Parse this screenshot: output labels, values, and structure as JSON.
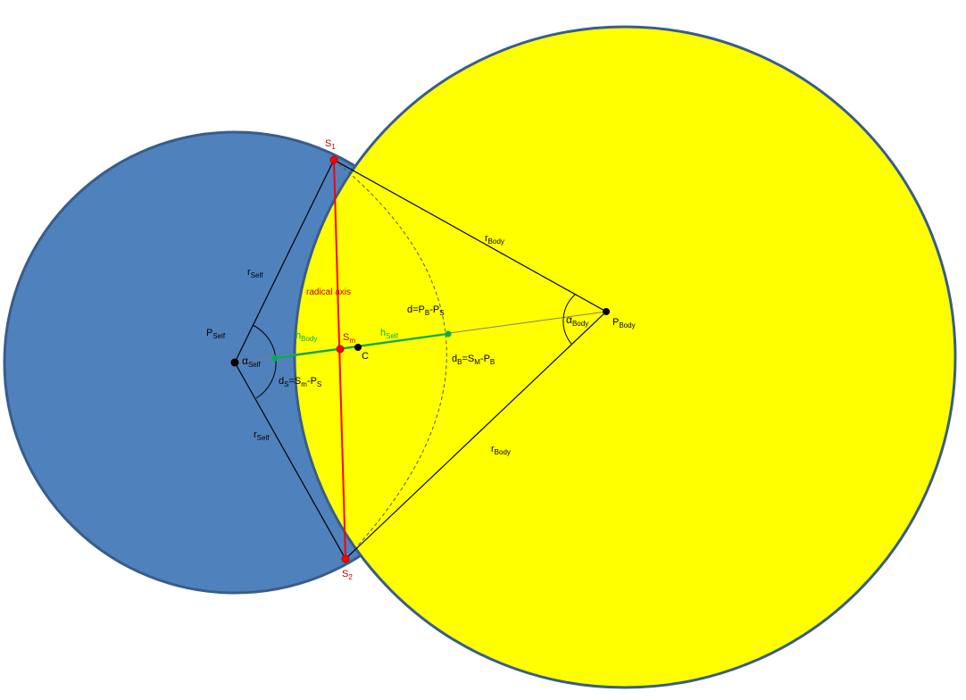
{
  "colors": {
    "self_circle_fill": "#4f81bd",
    "body_circle_fill": "#ffff00",
    "circle_outline": "#385d8a",
    "radical_axis": "#ff0000",
    "green_line": "#00b050",
    "black": "#000000"
  },
  "labels": {
    "s1": {
      "main": "S",
      "sub": "1"
    },
    "s2": {
      "main": "S",
      "sub": "2"
    },
    "sm": {
      "main": "S",
      "sub": "m"
    },
    "c": "C",
    "p_self": {
      "main": "P",
      "sub": "Self"
    },
    "p_body": {
      "main": "P",
      "sub": "Body"
    },
    "r_self_top": {
      "main": "r",
      "sub": "Self"
    },
    "r_self_bottom": {
      "main": "r",
      "sub": "Self"
    },
    "r_body_top": {
      "main": "r",
      "sub": "Body"
    },
    "r_body_bottom": {
      "main": "r",
      "sub": "Body"
    },
    "alpha_self": {
      "main": "α",
      "sub": "Self"
    },
    "alpha_body": {
      "main": "α",
      "sub": "Body"
    },
    "h_body": {
      "main": "h",
      "sub": "Body"
    },
    "h_self": {
      "main": "h",
      "sub": "Self"
    },
    "radical_axis": "radical axis",
    "d": {
      "a": "d=P",
      "a_sub": "B",
      "b": "-P",
      "b_sub": "S"
    },
    "d_s": {
      "a": "d",
      "a_sub": "S",
      "b": "=S",
      "b_sub": "m",
      "c": "-P",
      "c_sub": "S"
    },
    "d_b": {
      "a": "d",
      "a_sub": "B",
      "b": "=S",
      "b_sub": "M",
      "c": "-P",
      "c_sub": "B"
    }
  }
}
